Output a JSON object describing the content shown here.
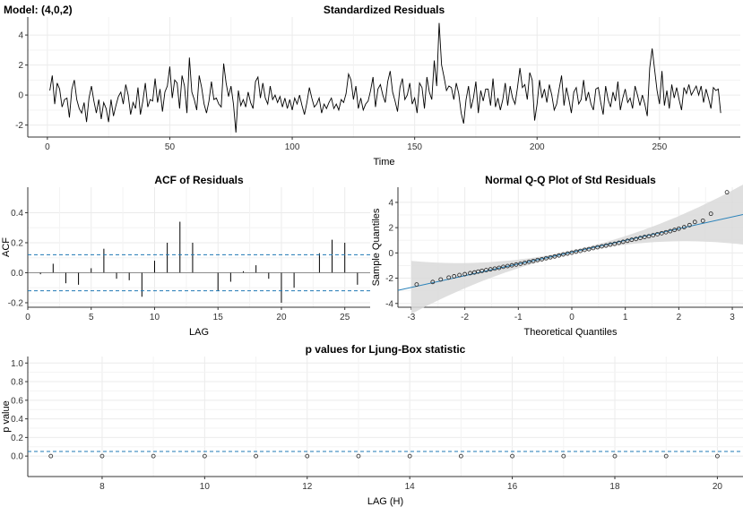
{
  "model_label": "Model: (4,0,2)",
  "chart_data": [
    {
      "id": "std_residuals",
      "type": "line",
      "title": "Standardized Residuals",
      "xlabel": "Time",
      "ylabel": "",
      "xlim": [
        -8,
        283
      ],
      "ylim": [
        -2.8,
        5.2
      ],
      "xticks": [
        0,
        50,
        100,
        150,
        200,
        250
      ],
      "yticks": [
        -2,
        0,
        2,
        4
      ],
      "grid": true,
      "series": [
        {
          "values": [
            0.3,
            1.3,
            -0.6,
            0.8,
            0.4,
            -0.8,
            -0.3,
            -0.2,
            -1.5,
            0.4,
            1.0,
            -0.3,
            -0.9,
            -1.2,
            -0.5,
            -1.8,
            -0.2,
            0.6,
            -0.4,
            -1.2,
            -0.3,
            -1.6,
            -0.5,
            -0.9,
            -1.8,
            -0.3,
            -1.4,
            -0.7,
            -0.1,
            0.2,
            -0.6,
            0.7,
            0.0,
            -1.3,
            -0.5,
            -0.9,
            0.5,
            -1.3,
            -0.4,
            0.8,
            -0.8,
            -0.3,
            -0.4,
            1.1,
            -0.5,
            0.4,
            -1.1,
            0.2,
            0.6,
            1.9,
            -0.2,
            1.0,
            0.8,
            -0.9,
            1.3,
            0.6,
            -1.2,
            2.5,
            0.2,
            -0.3,
            -1.0,
            1.3,
            0.5,
            -0.6,
            -1.2,
            -0.4,
            0.9,
            -0.3,
            -0.2,
            -0.6,
            -0.8,
            2.1,
            0.8,
            -0.1,
            0.6,
            -0.6,
            -2.5,
            0.3,
            -0.7,
            -0.3,
            -0.8,
            0.2,
            -0.5,
            -0.9,
            0.9,
            1.2,
            -0.2,
            0.8,
            -0.2,
            -0.6,
            0.6,
            -0.3,
            0.0,
            -0.5,
            -0.1,
            -0.8,
            -0.2,
            -0.9,
            -0.3,
            -1.0,
            -0.2,
            -0.6,
            0.0,
            -0.7,
            -1.3,
            -0.5,
            0.5,
            -0.2,
            -0.8,
            -0.6,
            -0.2,
            -1.2,
            -0.6,
            -0.9,
            -0.5,
            -0.2,
            -0.9,
            -0.6,
            -1.0,
            -0.3,
            -0.5,
            0.1,
            1.4,
            1.0,
            -0.3,
            0.6,
            -0.9,
            -0.2,
            -1.0,
            -0.6,
            -0.4,
            0.3,
            1.2,
            -0.8,
            0.4,
            0.7,
            0.0,
            -0.5,
            0.9,
            1.6,
            0.2,
            -0.4,
            -1.1,
            0.5,
            1.1,
            -0.3,
            0.0,
            0.8,
            -0.6,
            -0.2,
            -1.2,
            0.8,
            0.5,
            -0.9,
            1.2,
            0.2,
            -0.3,
            2.3,
            0.6,
            4.8,
            2.0,
            1.2,
            0.3,
            0.6,
            0.5,
            -0.3,
            0.8,
            0.1,
            -1.2,
            -1.9,
            -0.3,
            0.6,
            -0.9,
            -0.2,
            0.9,
            -1.2,
            0.3,
            -0.4,
            0.4,
            0.4,
            -0.7,
            1.1,
            -0.8,
            -0.2,
            -1.0,
            -0.3,
            0.8,
            -0.7,
            0.6,
            -0.2,
            -0.6,
            0.5,
            1.8,
            0.5,
            0.7,
            -0.3,
            1.5,
            1.0,
            -1.7,
            -0.6,
            1.0,
            -0.2,
            0.4,
            -0.5,
            0.7,
            0.0,
            -1.0,
            -0.6,
            0.4,
            1.3,
            -0.7,
            0.5,
            -0.3,
            -1.2,
            0.2,
            0.5,
            -0.6,
            -0.3,
            1.0,
            -0.4,
            0.2,
            -0.6,
            -1.0,
            0.4,
            0.5,
            -0.5,
            -1.3,
            0.6,
            -0.3,
            -0.8,
            0.2,
            -0.4,
            0.9,
            -1.0,
            -0.2,
            0.4,
            -0.5,
            -0.2,
            -0.9,
            0.6,
            0.0,
            -0.7,
            0.0,
            -0.6,
            -1.4,
            1.8,
            3.1,
            1.7,
            0.3,
            -0.6,
            1.6,
            -0.7,
            0.3,
            -0.9,
            0.7,
            -0.2,
            0.5,
            -0.3,
            -1.0,
            0.5,
            0.1,
            0.7,
            0.0,
            0.3,
            0.6,
            0.0,
            0.6,
            -0.5,
            0.4,
            -0.2,
            -0.9,
            0.5,
            0.3,
            0.4,
            -1.2
          ]
        }
      ]
    },
    {
      "id": "acf",
      "type": "bar",
      "title": "ACF of Residuals",
      "xlabel": "LAG",
      "ylabel": "ACF",
      "xlim": [
        0,
        27
      ],
      "ylim": [
        -0.23,
        0.57
      ],
      "xticks": [
        0,
        5,
        10,
        15,
        20,
        25
      ],
      "yticks": [
        -0.2,
        0.0,
        0.2,
        0.4
      ],
      "grid": true,
      "confidence_band": [
        0.12,
        -0.12
      ],
      "x": [
        1,
        2,
        3,
        4,
        5,
        6,
        7,
        8,
        9,
        10,
        11,
        12,
        13,
        14,
        15,
        16,
        17,
        18,
        19,
        20,
        21,
        22,
        23,
        24,
        25,
        26
      ],
      "values": [
        -0.01,
        0.06,
        -0.07,
        -0.08,
        0.03,
        0.16,
        -0.04,
        -0.05,
        -0.16,
        0.08,
        0.2,
        0.34,
        0.2,
        0.0,
        -0.12,
        -0.06,
        0.01,
        0.05,
        -0.04,
        -0.2,
        -0.1,
        0.0,
        0.13,
        0.22,
        0.2,
        -0.08
      ]
    },
    {
      "id": "qq",
      "type": "scatter",
      "title": "Normal Q-Q Plot of Std Residuals",
      "xlabel": "Theoretical Quantiles",
      "ylabel": "Sample Quantiles",
      "xlim": [
        -3.25,
        3.2
      ],
      "ylim": [
        -4.3,
        5.2
      ],
      "xticks": [
        -3,
        -2,
        -1,
        0,
        1,
        2,
        3
      ],
      "yticks": [
        -4,
        -2,
        0,
        2,
        4
      ],
      "grid": true,
      "reference_line": {
        "slope": 0.93,
        "intercept": 0.06
      },
      "points": {
        "x": [
          -2.9,
          -2.6,
          -2.45,
          -2.3,
          -2.2,
          -2.1,
          -2.0,
          -1.9,
          -1.82,
          -1.75,
          -1.68,
          -1.6,
          -1.52,
          -1.44,
          -1.36,
          -1.28,
          -1.2,
          -1.12,
          -1.04,
          -0.96,
          -0.88,
          -0.8,
          -0.72,
          -0.64,
          -0.56,
          -0.48,
          -0.4,
          -0.32,
          -0.24,
          -0.16,
          -0.08,
          0.0,
          0.08,
          0.16,
          0.24,
          0.32,
          0.4,
          0.48,
          0.56,
          0.64,
          0.72,
          0.8,
          0.88,
          0.96,
          1.04,
          1.12,
          1.2,
          1.28,
          1.36,
          1.44,
          1.52,
          1.6,
          1.68,
          1.76,
          1.84,
          1.92,
          2.0,
          2.1,
          2.2,
          2.3,
          2.45,
          2.6,
          2.9
        ],
        "y": [
          -2.5,
          -2.3,
          -2.1,
          -1.95,
          -1.85,
          -1.75,
          -1.68,
          -1.6,
          -1.55,
          -1.48,
          -1.42,
          -1.36,
          -1.3,
          -1.24,
          -1.18,
          -1.1,
          -1.04,
          -0.98,
          -0.92,
          -0.86,
          -0.78,
          -0.7,
          -0.64,
          -0.56,
          -0.5,
          -0.42,
          -0.35,
          -0.28,
          -0.2,
          -0.12,
          -0.05,
          0.02,
          0.1,
          0.16,
          0.24,
          0.3,
          0.38,
          0.45,
          0.52,
          0.58,
          0.66,
          0.72,
          0.8,
          0.88,
          0.96,
          1.04,
          1.1,
          1.18,
          1.26,
          1.32,
          1.4,
          1.48,
          1.56,
          1.64,
          1.72,
          1.82,
          1.92,
          2.04,
          2.2,
          2.45,
          2.55,
          3.1,
          4.8
        ]
      }
    },
    {
      "id": "ljung_box",
      "type": "scatter",
      "title": "p values for Ljung-Box statistic",
      "xlabel": "LAG (H)",
      "ylabel": "p value",
      "xlim": [
        6.55,
        20.5
      ],
      "ylim": [
        -0.22,
        1.07
      ],
      "xticks": [
        8,
        10,
        12,
        14,
        16,
        18,
        20
      ],
      "yticks": [
        0.0,
        0.2,
        0.4,
        0.6,
        0.8,
        1.0
      ],
      "grid": true,
      "threshold": 0.05,
      "points": {
        "x": [
          7,
          8,
          9,
          10,
          11,
          12,
          13,
          14,
          15,
          16,
          17,
          18,
          19,
          20
        ],
        "y": [
          0.0,
          0.0,
          0.0,
          0.0,
          0.0,
          0.0,
          0.0,
          0.0,
          0.0,
          0.0,
          0.0,
          0.0,
          0.0,
          0.0
        ]
      }
    }
  ],
  "colors": {
    "grid": "#ebebeb",
    "axis": "#333333",
    "line": "#000000",
    "dashed": "#1f78b4",
    "ref_line": "#2b83ba",
    "band": "#d9d9d9"
  }
}
